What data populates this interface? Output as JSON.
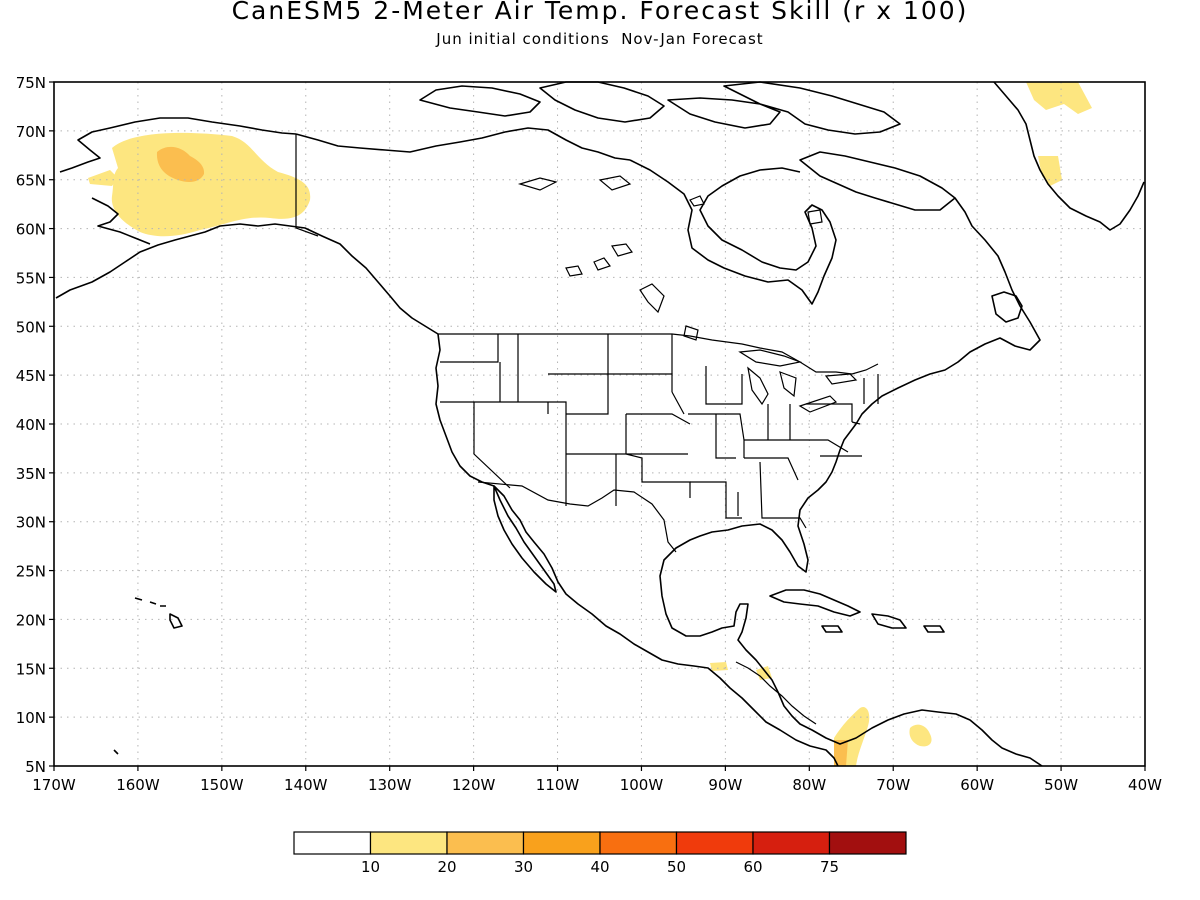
{
  "title": "CanESM5 2-Meter Air Temp. Forecast Skill (r x 100)",
  "subtitle": "Jun initial conditions  Nov-Jan Forecast",
  "map": {
    "lat_labels": [
      "75N",
      "70N",
      "65N",
      "60N",
      "55N",
      "50N",
      "45N",
      "40N",
      "35N",
      "30N",
      "25N",
      "20N",
      "15N",
      "10N",
      "5N"
    ],
    "lon_labels": [
      "170W",
      "160W",
      "150W",
      "140W",
      "130W",
      "120W",
      "110W",
      "100W",
      "90W",
      "80W",
      "70W",
      "60W",
      "50W",
      "40W"
    ],
    "lat_range": [
      5,
      75
    ],
    "lon_range": [
      -170,
      -40
    ],
    "grid": "dotted",
    "colors": {
      "coast": "#000000",
      "grid": "#b4b4b4"
    }
  },
  "skill_regions": [
    {
      "name": "Alaska",
      "level": "10-20",
      "color": "#fde680"
    },
    {
      "name": "Alaska interior core",
      "level": "20-30",
      "color": "#fbbe4f"
    },
    {
      "name": "Greenland",
      "level": "10-20",
      "color": "#fde680"
    },
    {
      "name": "Central America",
      "level": "10-20",
      "color": "#fde680"
    },
    {
      "name": "Colombia",
      "level": "20-30",
      "color": "#fbbe4f"
    },
    {
      "name": "Venezuela",
      "level": "10-20",
      "color": "#fde680"
    }
  ],
  "colorbar": {
    "labels": [
      "10",
      "20",
      "30",
      "40",
      "50",
      "60",
      "75"
    ],
    "colors": [
      "#ffffff",
      "#fde680",
      "#fbbe4f",
      "#f9a11c",
      "#f86f10",
      "#f03b0c",
      "#d61f0f",
      "#a20f0f"
    ]
  }
}
